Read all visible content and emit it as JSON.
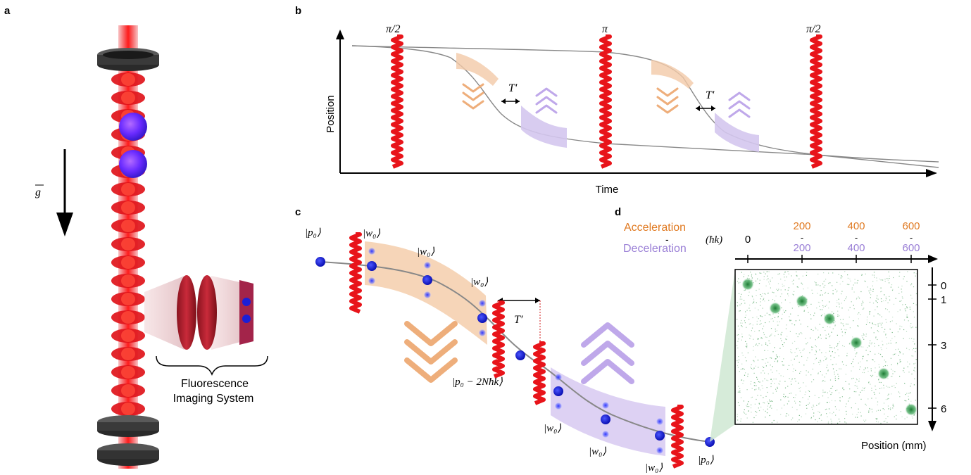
{
  "panels": {
    "a": "a",
    "b": "b",
    "c": "c",
    "d": "d"
  },
  "panel_a": {
    "gravity_label": "g",
    "imaging_label_line1": "Fluorescence",
    "imaging_label_line2": "Imaging System"
  },
  "panel_b": {
    "ylabel": "Position",
    "xlabel": "Time",
    "pulse_labels": [
      "π/2",
      "π",
      "π/2"
    ],
    "gap_label": "T′"
  },
  "panel_c": {
    "state_p0": "|p₀⟩",
    "state_w0": "|w₀⟩",
    "state_p0_shift": "|p₀ − 2Nħk⟩",
    "gap_label": "T′"
  },
  "panel_d": {
    "acceleration_label": "Acceleration",
    "deceleration_label": "Deceleration",
    "hbar_k_unit": "(ħk)",
    "top_ticks_acc": [
      "0",
      "200",
      "400",
      "600"
    ],
    "top_ticks_dec": [
      "200",
      "400",
      "600"
    ],
    "dash": "-",
    "right_ticks": [
      "0",
      "1",
      "3",
      "6"
    ],
    "position_label": "Position (mm)"
  },
  "colors": {
    "orange": "#e07a22",
    "purple": "#9a7fd6",
    "red": "#e8141a",
    "blue": "#1c1fd6",
    "green": "#2f9a45"
  }
}
